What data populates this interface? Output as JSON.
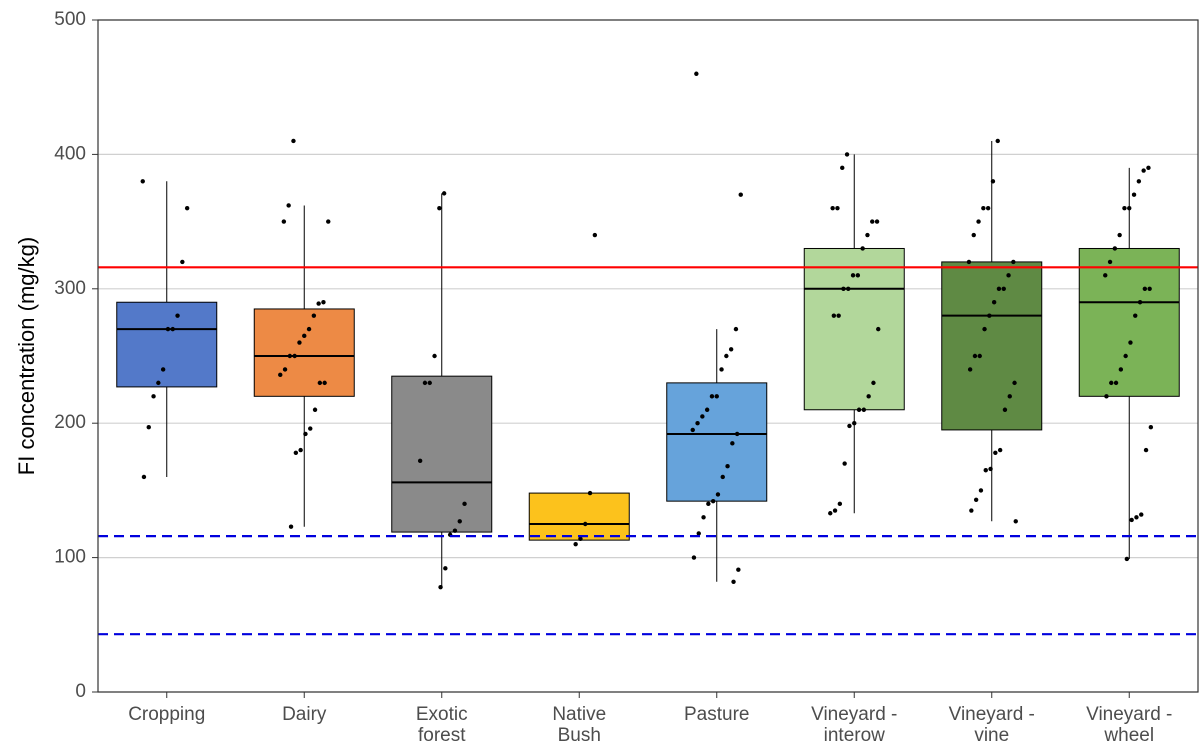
{
  "chart_data": {
    "type": "box",
    "y_label": "FI concentration (mg/kg)",
    "categories": [
      "Cropping",
      "Dairy",
      "Exotic\nforest",
      "Native\nBush",
      "Pasture",
      "Vineyard -\ninterow",
      "Vineyard -\nvine",
      "Vineyard -\nwheel"
    ],
    "colors": [
      "#5379c9",
      "#ed8a45",
      "#8a8a8a",
      "#fcc21c",
      "#66a3db",
      "#b2d79b",
      "#5f8a44",
      "#7bb357"
    ],
    "boxes": [
      {
        "min": 160,
        "q1": 227,
        "median": 270,
        "q3": 290,
        "max": 380,
        "points": [
          380,
          360,
          320,
          280,
          270,
          270,
          240,
          230,
          220,
          197,
          160
        ]
      },
      {
        "min": 123,
        "q1": 220,
        "median": 250,
        "q3": 285,
        "max": 362,
        "points": [
          410,
          362,
          350,
          350,
          290,
          289,
          280,
          270,
          265,
          260,
          250,
          250,
          240,
          236,
          230,
          230,
          210,
          196,
          192,
          180,
          178,
          123
        ]
      },
      {
        "min": 78,
        "q1": 119,
        "median": 156,
        "q3": 235,
        "max": 371,
        "points": [
          371,
          360,
          250,
          230,
          230,
          172,
          140,
          127,
          120,
          117,
          92,
          78
        ]
      },
      {
        "min": 113,
        "q1": 113,
        "median": 125,
        "q3": 148,
        "max": 148,
        "points": [
          340,
          148,
          125,
          114,
          110
        ]
      },
      {
        "min": 82,
        "q1": 142,
        "median": 192,
        "q3": 230,
        "max": 270,
        "points": [
          460,
          370,
          270,
          255,
          250,
          240,
          220,
          220,
          210,
          205,
          200,
          195,
          192,
          185,
          168,
          160,
          147,
          142,
          140,
          130,
          118,
          100,
          91,
          82
        ]
      },
      {
        "min": 133,
        "q1": 210,
        "median": 300,
        "q3": 330,
        "max": 400,
        "points": [
          400,
          390,
          360,
          360,
          350,
          350,
          340,
          330,
          310,
          310,
          300,
          300,
          280,
          280,
          270,
          230,
          220,
          210,
          210,
          200,
          198,
          170,
          140,
          135,
          133
        ]
      },
      {
        "min": 127,
        "q1": 195,
        "median": 280,
        "q3": 320,
        "max": 410,
        "points": [
          410,
          380,
          360,
          360,
          350,
          340,
          320,
          320,
          310,
          300,
          300,
          290,
          280,
          270,
          250,
          250,
          240,
          230,
          220,
          210,
          180,
          178,
          166,
          165,
          150,
          143,
          135,
          127
        ]
      },
      {
        "min": 99,
        "q1": 220,
        "median": 290,
        "q3": 330,
        "max": 390,
        "points": [
          390,
          388,
          380,
          370,
          360,
          360,
          340,
          330,
          320,
          310,
          300,
          300,
          290,
          280,
          260,
          250,
          240,
          230,
          230,
          220,
          197,
          180,
          132,
          130,
          128,
          99
        ]
      }
    ],
    "reference_lines": [
      {
        "value": 316,
        "color": "#ff0000",
        "dashed": false
      },
      {
        "value": 116,
        "color": "#0000dd",
        "dashed": true
      },
      {
        "value": 43,
        "color": "#0000dd",
        "dashed": true
      }
    ],
    "ylim": [
      0,
      500
    ],
    "yticks": [
      0,
      100,
      200,
      300,
      400,
      500
    ],
    "grid": true
  }
}
